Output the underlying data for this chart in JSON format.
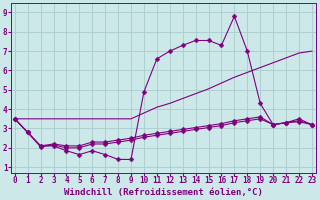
{
  "title": "",
  "xlabel": "Windchill (Refroidissement éolien,°C)",
  "ylabel": "",
  "bg_color": "#cce8e8",
  "line_color": "#800080",
  "grid_color": "#aacccc",
  "x_ticks": [
    0,
    1,
    2,
    3,
    4,
    5,
    6,
    7,
    8,
    9,
    10,
    11,
    12,
    13,
    14,
    15,
    16,
    17,
    18,
    19,
    20,
    21,
    22,
    23
  ],
  "y_ticks": [
    1,
    2,
    3,
    4,
    5,
    6,
    7,
    8,
    9
  ],
  "xlim": [
    -0.3,
    23.3
  ],
  "ylim": [
    0.7,
    9.5
  ],
  "line1_x": [
    0,
    1,
    2,
    3,
    4,
    5,
    6,
    7,
    8,
    9,
    10,
    11,
    12,
    13,
    14,
    15,
    16,
    17,
    18,
    19,
    20,
    21,
    22,
    23
  ],
  "line1_y": [
    3.5,
    2.8,
    2.1,
    2.1,
    1.85,
    1.65,
    1.85,
    1.65,
    1.4,
    1.4,
    4.9,
    6.6,
    7.0,
    7.3,
    7.55,
    7.55,
    7.3,
    8.8,
    7.0,
    4.3,
    3.2,
    3.3,
    3.5,
    3.2
  ],
  "line2_x": [
    0,
    9,
    10,
    11,
    12,
    13,
    14,
    15,
    16,
    17,
    18,
    19,
    20,
    21,
    22,
    23
  ],
  "line2_y": [
    3.5,
    3.5,
    3.8,
    4.1,
    4.3,
    4.55,
    4.8,
    5.05,
    5.35,
    5.65,
    5.9,
    6.15,
    6.4,
    6.65,
    6.9,
    7.0
  ],
  "line3_x": [
    0,
    1,
    2,
    3,
    4,
    5,
    6,
    7,
    8,
    9,
    10,
    11,
    12,
    13,
    14,
    15,
    16,
    17,
    18,
    19,
    20,
    21,
    22,
    23
  ],
  "line3_y": [
    3.5,
    2.8,
    2.1,
    2.2,
    2.1,
    2.1,
    2.3,
    2.3,
    2.4,
    2.5,
    2.65,
    2.75,
    2.85,
    2.95,
    3.05,
    3.15,
    3.25,
    3.4,
    3.5,
    3.6,
    3.2,
    3.3,
    3.4,
    3.2
  ],
  "line4_x": [
    0,
    1,
    2,
    3,
    4,
    5,
    6,
    7,
    8,
    9,
    10,
    11,
    12,
    13,
    14,
    15,
    16,
    17,
    18,
    19,
    20,
    21,
    22,
    23
  ],
  "line4_y": [
    3.5,
    2.8,
    2.05,
    2.15,
    2.0,
    2.0,
    2.2,
    2.2,
    2.3,
    2.4,
    2.55,
    2.65,
    2.75,
    2.85,
    2.95,
    3.05,
    3.15,
    3.3,
    3.4,
    3.5,
    3.2,
    3.3,
    3.35,
    3.2
  ],
  "marker": "D",
  "markersize": 2.5,
  "linewidth": 0.8,
  "font_color": "#800080",
  "xlabel_fontsize": 6.5,
  "tick_fontsize": 5.5
}
